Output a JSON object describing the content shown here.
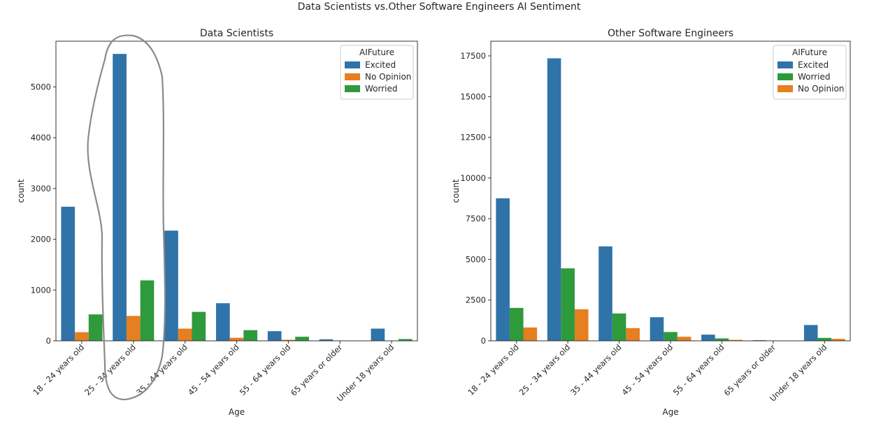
{
  "suptitle": "Data Scientists vs.Other Software Engineers AI Sentiment",
  "colors": {
    "Excited": "#2f73a8",
    "No Opinion": "#e67e22",
    "Worried": "#2e9a3c"
  },
  "chart_data": [
    {
      "type": "bar",
      "title": "Data Scientists",
      "xlabel": "Age",
      "ylabel": "count",
      "ylim": [
        0,
        5900
      ],
      "yticks": [
        0,
        1000,
        2000,
        3000,
        4000,
        5000
      ],
      "categories": [
        "18 - 24 years old",
        "25 - 34 years old",
        "35 - 44 years old",
        "45 - 54 years old",
        "55 - 64 years old",
        "65 years or older",
        "Under 18 years old"
      ],
      "legend_title": "AIFuture",
      "legend_position": "top-right",
      "series": [
        {
          "name": "Excited",
          "values": [
            2640,
            5650,
            2170,
            740,
            190,
            30,
            240
          ]
        },
        {
          "name": "No Opinion",
          "values": [
            170,
            490,
            240,
            60,
            20,
            5,
            5
          ]
        },
        {
          "name": "Worried",
          "values": [
            520,
            1190,
            570,
            210,
            80,
            5,
            35
          ]
        }
      ]
    },
    {
      "type": "bar",
      "title": "Other Software Engineers",
      "xlabel": "Age",
      "ylabel": "count",
      "ylim": [
        0,
        18400
      ],
      "yticks": [
        0,
        2500,
        5000,
        7500,
        10000,
        12500,
        15000,
        17500
      ],
      "categories": [
        "18 - 24 years old",
        "25 - 34 years old",
        "35 - 44 years old",
        "45 - 54 years old",
        "55 - 64 years old",
        "65 years or older",
        "Under 18 years old"
      ],
      "legend_title": "AIFuture",
      "legend_position": "top-right",
      "series": [
        {
          "name": "Excited",
          "values": [
            8750,
            17350,
            5800,
            1450,
            380,
            40,
            970
          ]
        },
        {
          "name": "Worried",
          "values": [
            2020,
            4450,
            1680,
            540,
            150,
            10,
            180
          ]
        },
        {
          "name": "No Opinion",
          "values": [
            820,
            1940,
            780,
            250,
            60,
            5,
            120
          ]
        }
      ]
    }
  ]
}
